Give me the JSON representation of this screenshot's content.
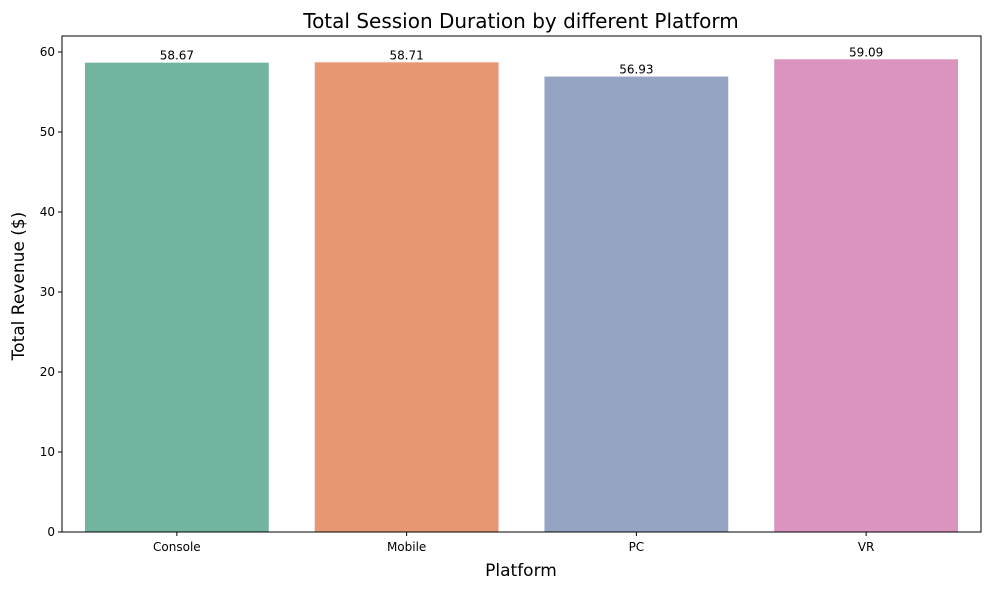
{
  "chart_data": {
    "type": "bar",
    "title": "Total Session Duration by different Platform",
    "xlabel": "Platform",
    "ylabel": "Total Revenue ($)",
    "categories": [
      "Console",
      "Mobile",
      "PC",
      "VR"
    ],
    "values": [
      58.67,
      58.71,
      56.93,
      59.09
    ],
    "value_labels": [
      "58.67",
      "58.71",
      "56.93",
      "59.09"
    ],
    "colors": [
      "#73b4a0",
      "#e89775",
      "#94a4c2",
      "#db94bd"
    ],
    "ylim": [
      0,
      62
    ],
    "yticks": [
      0,
      10,
      20,
      30,
      40,
      50,
      60
    ],
    "ytick_labels": [
      "0",
      "10",
      "20",
      "30",
      "40",
      "50",
      "60"
    ],
    "grid": false,
    "legend": "none"
  }
}
